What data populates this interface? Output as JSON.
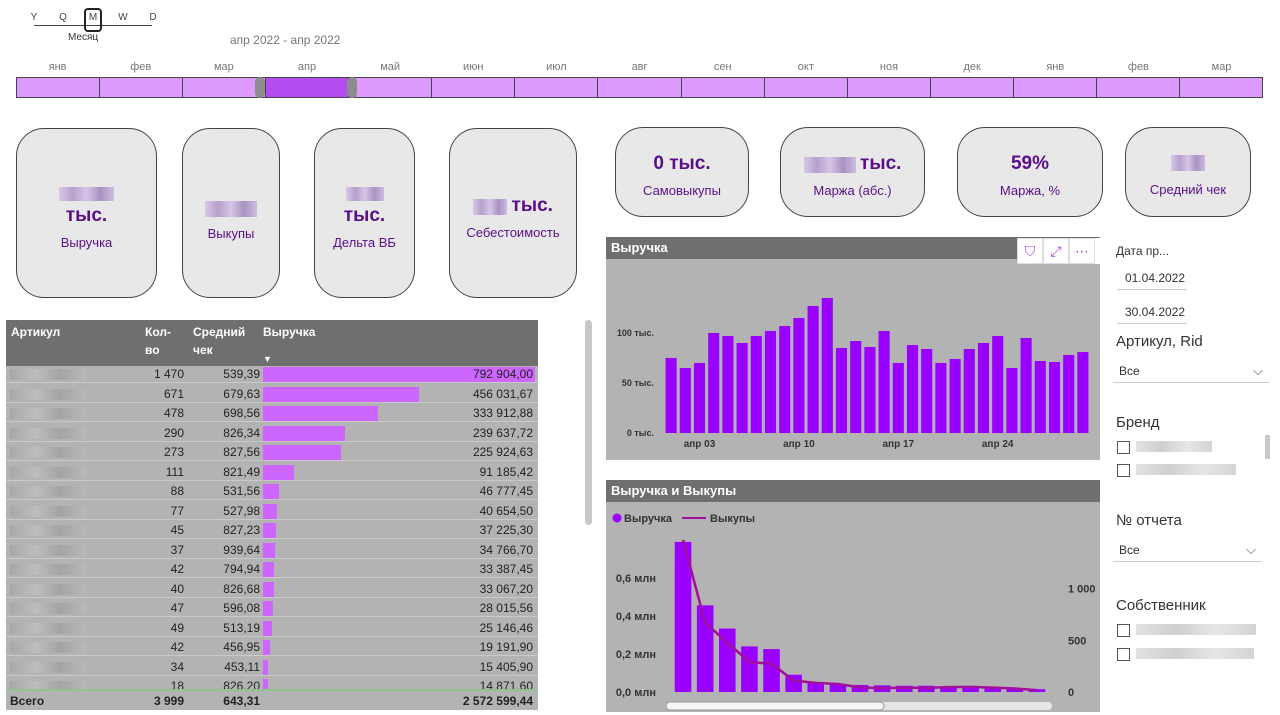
{
  "timeline": {
    "granularity": [
      "Y",
      "Q",
      "M",
      "W",
      "D"
    ],
    "granularity_selected": "M",
    "granularity_caption": "Месяц",
    "range_label": "апр 2022 - апр 2022",
    "months": [
      "янв",
      "фев",
      "мар",
      "апр",
      "май",
      "июн",
      "июл",
      "авг",
      "сен",
      "окт",
      "ноя",
      "дек",
      "янв",
      "фев",
      "мар"
    ],
    "selected_month_index": 3
  },
  "kpis": [
    {
      "value": "тыс.",
      "caption": "Выручка"
    },
    {
      "value": "",
      "caption": "Выкупы"
    },
    {
      "value": "тыс.",
      "caption": "Дельта ВБ"
    },
    {
      "value": "тыс.",
      "caption": "Себестоимость"
    },
    {
      "value": "0 тыс.",
      "caption": "Самовыкупы"
    },
    {
      "value": "тыс.",
      "caption": "Маржа (абс.)"
    },
    {
      "value": "59%",
      "caption": "Маржа, %"
    },
    {
      "value": "",
      "caption": "Средний чек"
    }
  ],
  "table": {
    "headers": [
      "Артикул",
      "Кол-во",
      "Средний чек",
      "Выручка"
    ],
    "sort_indicator": "▼",
    "rows": [
      {
        "qty": "1 470",
        "avg": "539,39",
        "rev": "792 904,00",
        "revn": 792904.0
      },
      {
        "qty": "671",
        "avg": "679,63",
        "rev": "456 031,67",
        "revn": 456031.67
      },
      {
        "qty": "478",
        "avg": "698,56",
        "rev": "333 912,88",
        "revn": 333912.88
      },
      {
        "qty": "290",
        "avg": "826,34",
        "rev": "239 637,72",
        "revn": 239637.72
      },
      {
        "qty": "273",
        "avg": "827,56",
        "rev": "225 924,63",
        "revn": 225924.63
      },
      {
        "qty": "111",
        "avg": "821,49",
        "rev": "91 185,42",
        "revn": 91185.42
      },
      {
        "qty": "88",
        "avg": "531,56",
        "rev": "46 777,45",
        "revn": 46777.45
      },
      {
        "qty": "77",
        "avg": "527,98",
        "rev": "40 654,50",
        "revn": 40654.5
      },
      {
        "qty": "45",
        "avg": "827,23",
        "rev": "37 225,30",
        "revn": 37225.3
      },
      {
        "qty": "37",
        "avg": "939,64",
        "rev": "34 766,70",
        "revn": 34766.7
      },
      {
        "qty": "42",
        "avg": "794,94",
        "rev": "33 387,45",
        "revn": 33387.45
      },
      {
        "qty": "40",
        "avg": "826,68",
        "rev": "33 067,20",
        "revn": 33067.2
      },
      {
        "qty": "47",
        "avg": "596,08",
        "rev": "28 015,56",
        "revn": 28015.56
      },
      {
        "qty": "49",
        "avg": "513,19",
        "rev": "25 146,46",
        "revn": 25146.46
      },
      {
        "qty": "42",
        "avg": "456,95",
        "rev": "19 191,90",
        "revn": 19191.9
      },
      {
        "qty": "34",
        "avg": "453,11",
        "rev": "15 405,90",
        "revn": 15405.9
      },
      {
        "qty": "18",
        "avg": "826,20",
        "rev": "14 871,60",
        "revn": 14871.6
      }
    ],
    "total": {
      "label": "Всего",
      "qty": "3 999",
      "avg": "643,31",
      "rev": "2 572 599,44"
    }
  },
  "chart_data": [
    {
      "type": "bar",
      "title": "Выручка",
      "x": [
        1,
        2,
        3,
        4,
        5,
        6,
        7,
        8,
        9,
        10,
        11,
        12,
        13,
        14,
        15,
        16,
        17,
        18,
        19,
        20,
        21,
        22,
        23,
        24,
        25,
        26,
        27,
        28,
        29,
        30
      ],
      "values": [
        75,
        65,
        70,
        100,
        97,
        90,
        97,
        102,
        107,
        115,
        127,
        135,
        85,
        92,
        86,
        102,
        70,
        88,
        84,
        70,
        74,
        84,
        90,
        97,
        65,
        95,
        72,
        71,
        78,
        81
      ],
      "xticks": [
        "апр 03",
        "апр 10",
        "апр 17",
        "апр 24"
      ],
      "xtick_positions": [
        3,
        10,
        17,
        24
      ],
      "yticks": [
        "0 тыс.",
        "50 тыс.",
        "100 тыс."
      ],
      "ylim": [
        0,
        150
      ],
      "color": "#9a00ff"
    },
    {
      "type": "bar+line",
      "title": "Выручка и Выкупы",
      "legend": [
        "Выручка",
        "Выкупы"
      ],
      "categories": 17,
      "bars": [
        0.79,
        0.456,
        0.334,
        0.24,
        0.226,
        0.091,
        0.047,
        0.041,
        0.037,
        0.035,
        0.033,
        0.033,
        0.028,
        0.025,
        0.019,
        0.015,
        0.015
      ],
      "line": [
        1470,
        671,
        478,
        290,
        273,
        111,
        88,
        77,
        45,
        37,
        42,
        40,
        47,
        49,
        42,
        34,
        18
      ],
      "yticks_left": [
        "0,0 млн",
        "0,2 млн",
        "0,4 млн",
        "0,6 млн"
      ],
      "yticks_right": [
        "0",
        "500",
        "1 000"
      ],
      "ylim_left": [
        0,
        0.8
      ],
      "ylim_right": [
        0,
        1470
      ],
      "bar_color": "#9a00ff",
      "line_color": "#a0109a"
    }
  ],
  "chart_tools": [
    "filter-icon",
    "focus-mode-icon",
    "more-options-icon"
  ],
  "slicers": {
    "date": {
      "title": "Дата пр...",
      "from": "01.04.2022",
      "to": "30.04.2022"
    },
    "article": {
      "title": "Артикул, Rid",
      "value": "Все"
    },
    "brand": {
      "title": "Бренд"
    },
    "report": {
      "title": "№ отчета",
      "value": "Все"
    },
    "owner": {
      "title": "Собственник"
    }
  }
}
